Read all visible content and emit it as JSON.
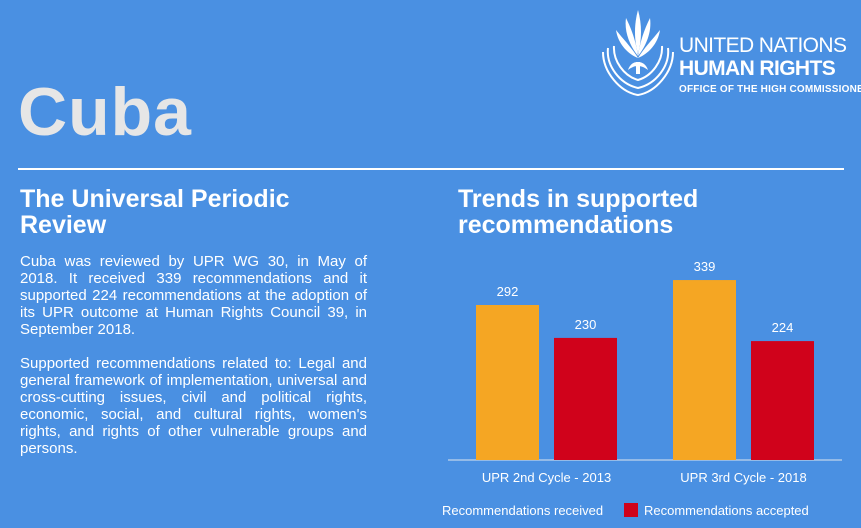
{
  "logo": {
    "line1": "UNITED NATIONS",
    "line2": "HUMAN RIGHTS",
    "line3": "OFFICE OF THE HIGH COMMISSIONER"
  },
  "country": "Cuba",
  "left": {
    "title": "The Universal Periodic Review",
    "paragraph1": "Cuba was reviewed by UPR WG 30, in May of 2018.  It received 339 recommendations and it supported 224 recommendations at the adoption of its UPR outcome at Human Rights Council 39, in September 2018.",
    "paragraph2": "Supported recommendations related to: Legal and general framework of implementation, universal and cross-cutting issues, civil and political rights, economic, social, and cultural rights, women's rights, and rights of other vulnerable groups and persons."
  },
  "colors": {
    "background": "#4a90e2",
    "received": "#f5a623",
    "accepted": "#d0021b"
  },
  "chart_data": {
    "type": "bar",
    "title": "Trends in supported recommendations",
    "categories": [
      "UPR 2nd Cycle - 2013",
      "UPR 3rd Cycle - 2018"
    ],
    "series": [
      {
        "name": "Recommendations received",
        "values": [
          292,
          339
        ]
      },
      {
        "name": "Recommendations accepted",
        "values": [
          230,
          224
        ]
      }
    ],
    "ylim": [
      0,
      400
    ],
    "grid": false,
    "legend": "bottom"
  }
}
